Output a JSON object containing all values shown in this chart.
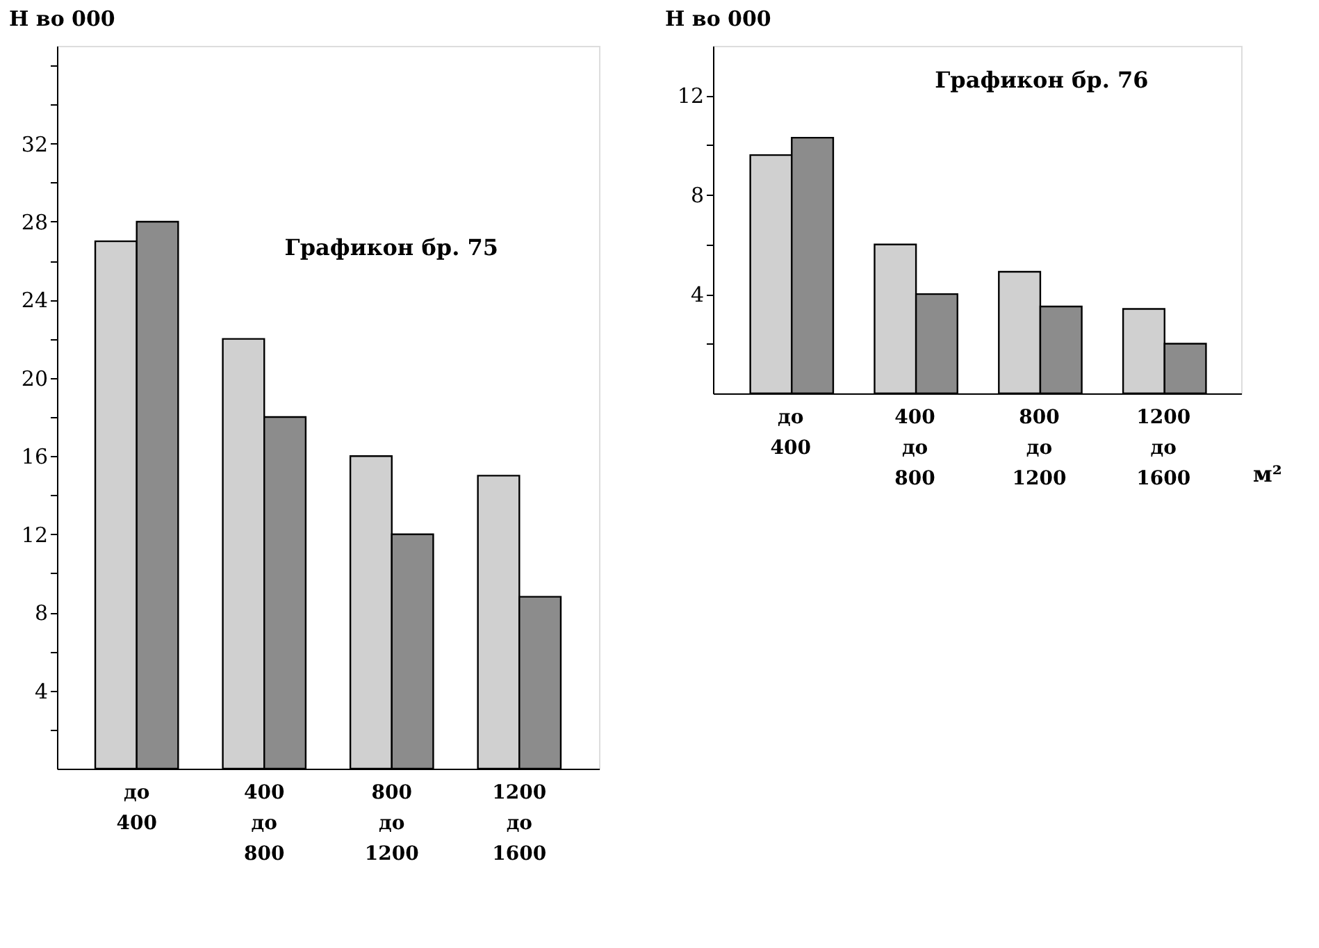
{
  "chart_data": [
    {
      "type": "bar",
      "title": "Графикон бр. 75",
      "ylabel": "Н во 000",
      "categories": [
        "до 400",
        "400 до 800",
        "800 до 1200",
        "1200 до 1600"
      ],
      "series": [
        {
          "color": "#d0d0d0",
          "values": [
            27,
            22,
            16,
            15
          ]
        },
        {
          "color": "#8c8c8c",
          "values": [
            28,
            18,
            12,
            8.8
          ]
        }
      ],
      "ylim": [
        0,
        37
      ],
      "yticks": [
        {
          "value": 2,
          "label": null
        },
        4,
        {
          "value": 6,
          "label": null
        },
        8,
        {
          "value": 10,
          "label": null
        },
        12,
        {
          "value": 14,
          "label": null
        },
        16,
        {
          "value": 18,
          "label": null
        },
        20,
        {
          "value": 22,
          "label": null
        },
        24,
        {
          "value": 26,
          "label": null
        },
        28,
        {
          "value": 30,
          "label": null
        },
        32,
        {
          "value": 34,
          "label": null
        },
        {
          "value": 36,
          "label": null
        }
      ],
      "grid": false,
      "legend": false
    },
    {
      "type": "bar",
      "title": "Графикон бр. 76",
      "ylabel": "Н во 000",
      "xlabel": "м²",
      "categories": [
        "до 400",
        "400 до 800",
        "800 до 1200",
        "1200 до 1600"
      ],
      "series": [
        {
          "color": "#d0d0d0",
          "values": [
            9.6,
            6,
            4.9,
            3.4
          ]
        },
        {
          "color": "#8c8c8c",
          "values": [
            10.3,
            4,
            3.5,
            2
          ]
        }
      ],
      "ylim": [
        0,
        14
      ],
      "yticks": [
        {
          "value": 2,
          "label": null
        },
        4,
        {
          "value": 6,
          "label": null
        },
        8,
        {
          "value": 10,
          "label": null
        },
        12
      ],
      "grid": false,
      "legend": false
    }
  ]
}
